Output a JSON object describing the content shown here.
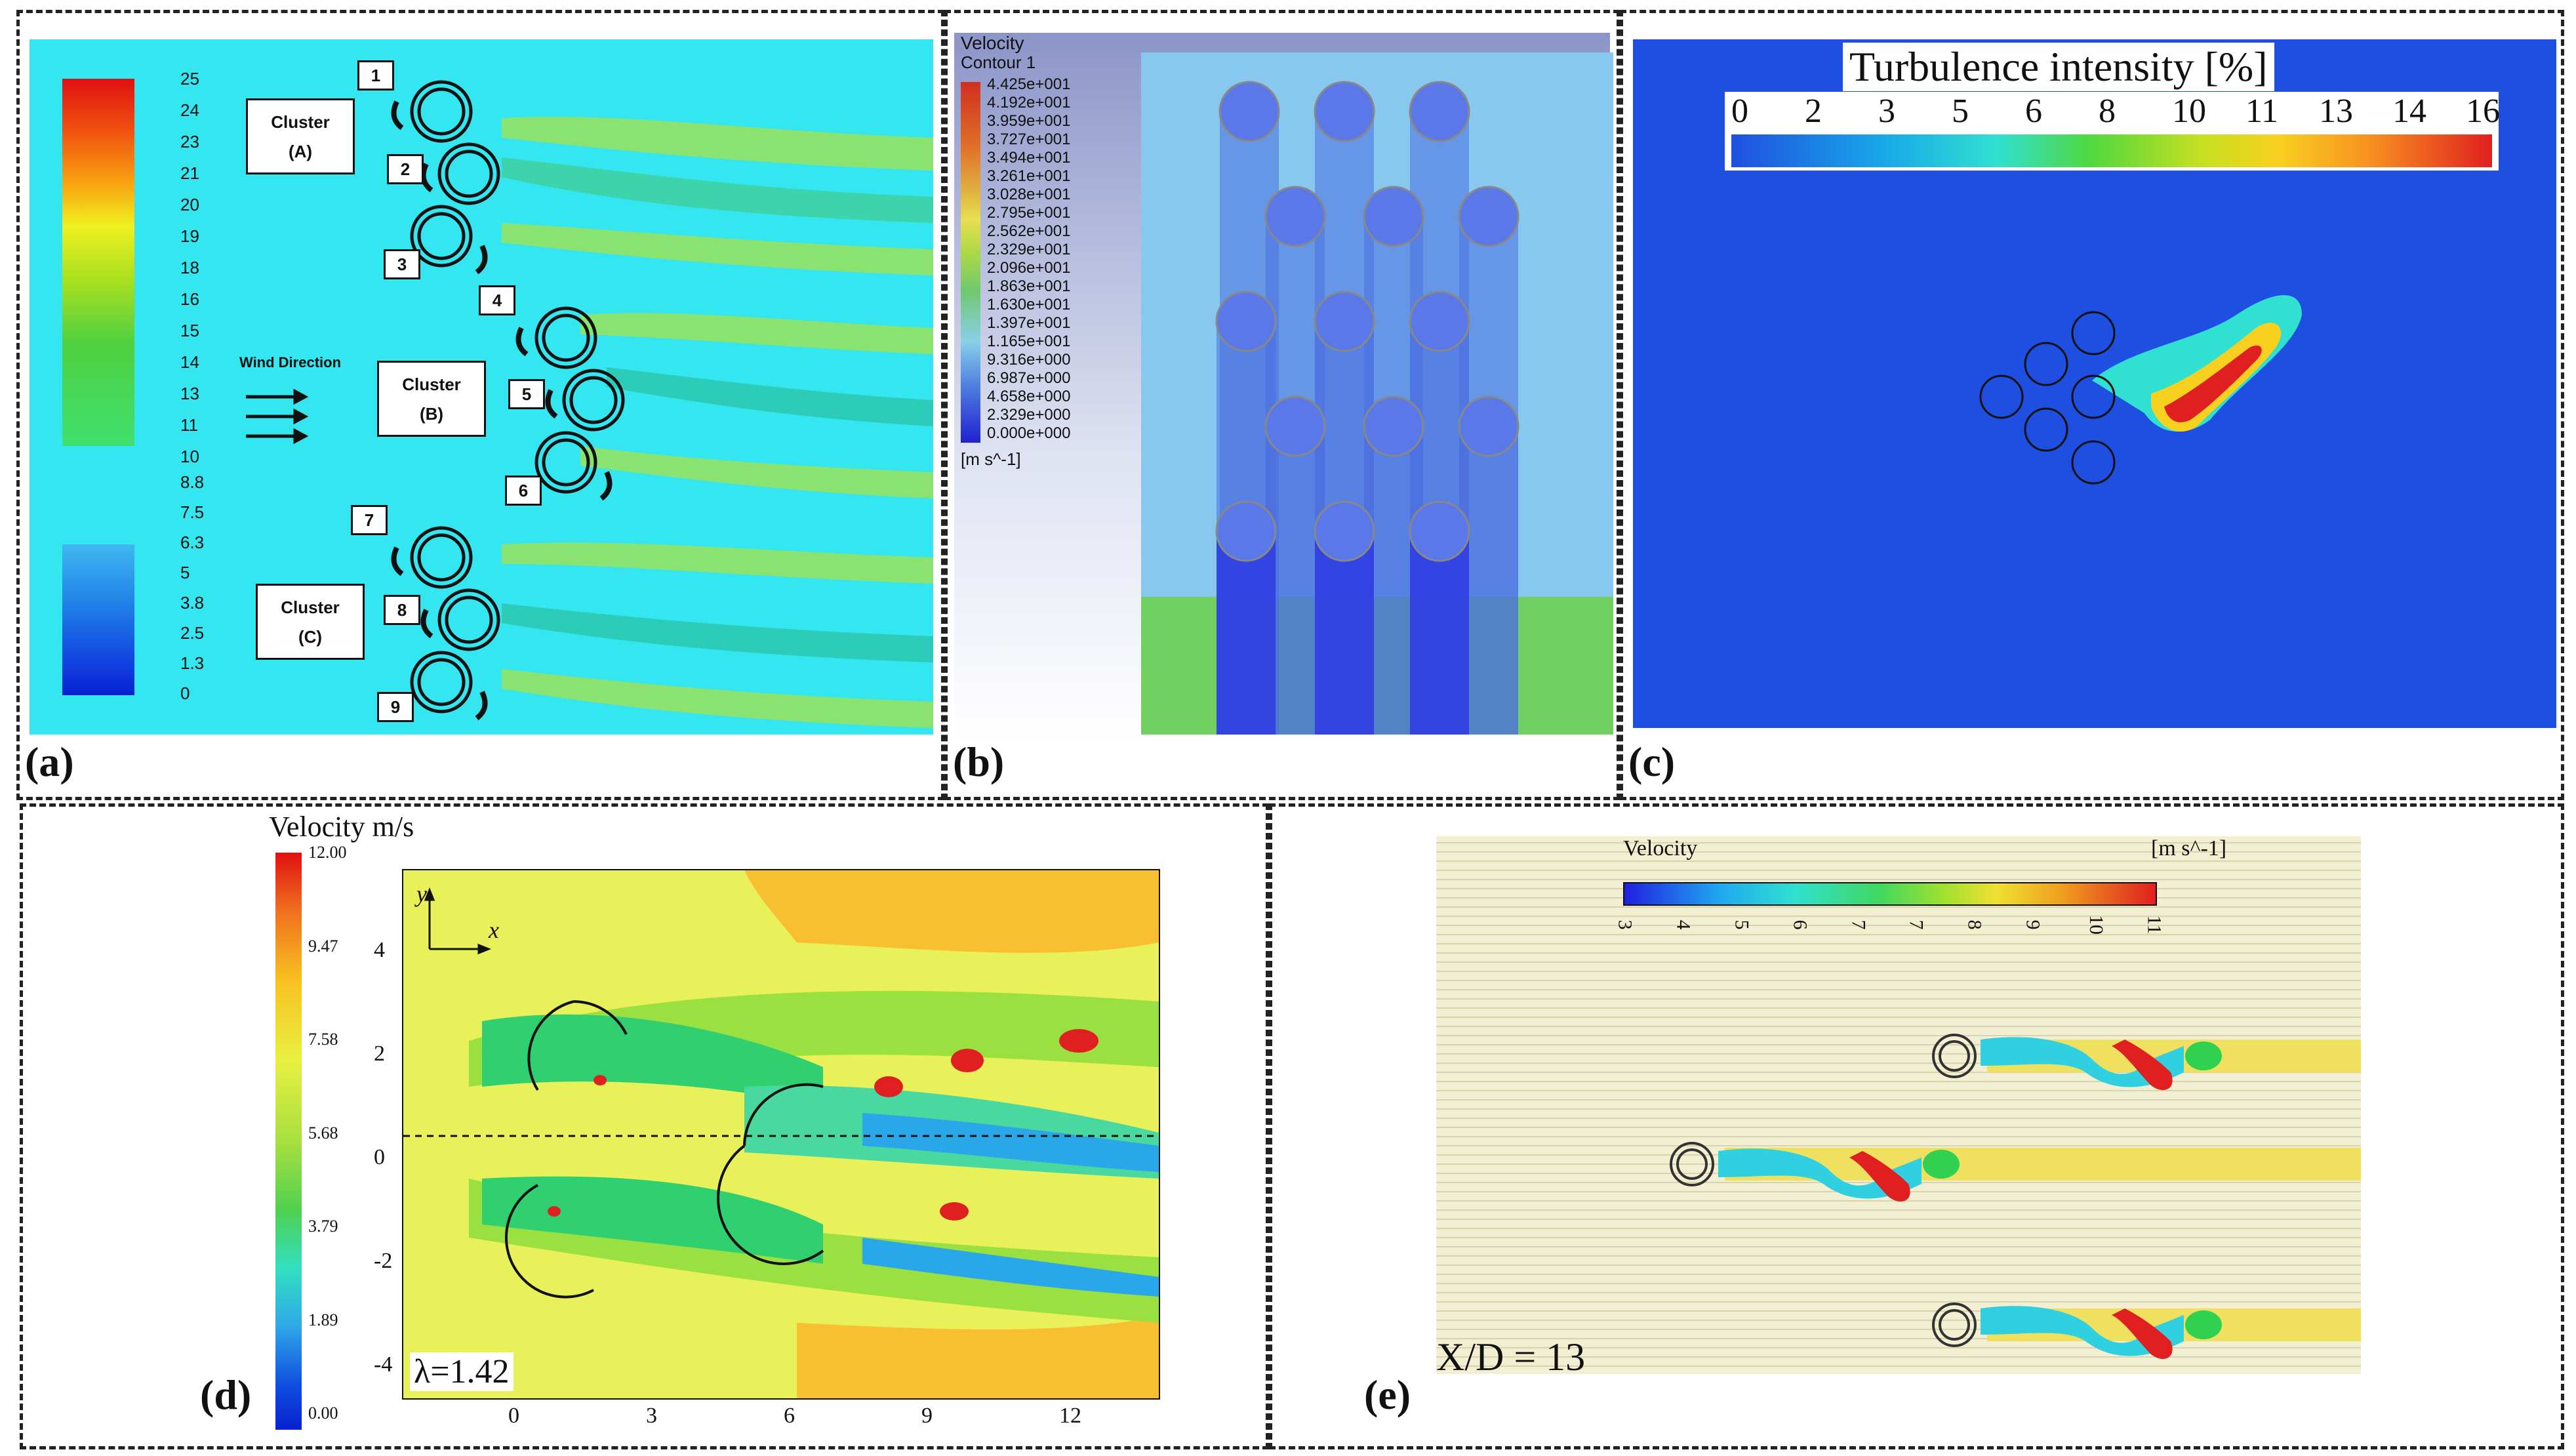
{
  "panels": {
    "a": {
      "label": "(a)",
      "legend_values": [
        "25",
        "24",
        "23",
        "21",
        "20",
        "19",
        "18",
        "16",
        "15",
        "14",
        "13",
        "11",
        "10",
        "8.8",
        "7.5",
        "6.3",
        "5",
        "3.8",
        "2.5",
        "1.3",
        "0"
      ],
      "wind_label": "Wind Direction",
      "clusters": [
        {
          "title": "Cluster",
          "sub": "(A)"
        },
        {
          "title": "Cluster",
          "sub": "(B)"
        },
        {
          "title": "Cluster",
          "sub": "(C)"
        }
      ],
      "turbine_numbers": [
        "1",
        "2",
        "3",
        "4",
        "5",
        "6",
        "7",
        "8",
        "9"
      ]
    },
    "b": {
      "label": "(b)",
      "legend_title": "Velocity",
      "legend_subtitle": "Contour 1",
      "legend_values": [
        "4.425e+001",
        "4.192e+001",
        "3.959e+001",
        "3.727e+001",
        "3.494e+001",
        "3.261e+001",
        "3.028e+001",
        "2.795e+001",
        "2.562e+001",
        "2.329e+001",
        "2.096e+001",
        "1.863e+001",
        "1.630e+001",
        "1.397e+001",
        "1.165e+001",
        "9.316e+000",
        "6.987e+000",
        "4.658e+000",
        "2.329e+000",
        "0.000e+000"
      ],
      "unit": "[m s^-1]"
    },
    "c": {
      "label": "(c)",
      "title": "Turbulence intensity [%]",
      "colorbar_ticks": [
        "0",
        "2",
        "3",
        "5",
        "6",
        "8",
        "10",
        "11",
        "13",
        "14",
        "16"
      ]
    },
    "d": {
      "label": "(d)",
      "legend_title": "Velocity m/s",
      "legend_values": [
        "12.00",
        "9.47",
        "7.58",
        "5.68",
        "3.79",
        "1.89",
        "0.00"
      ],
      "y_ticks": [
        "4",
        "2",
        "0",
        "-2",
        "-4"
      ],
      "x_ticks": [
        "0",
        "3",
        "6",
        "9",
        "12"
      ],
      "axis_y": "y",
      "axis_x": "x",
      "tsr": "λ=1.42"
    },
    "e": {
      "label": "(e)",
      "legend_title": "Velocity",
      "unit": "[m s^-1]",
      "colorbar_ticks": [
        "3",
        "4",
        "5",
        "6",
        "7",
        "7",
        "8",
        "9",
        "10",
        "11"
      ],
      "caption": "X/D = 13"
    }
  },
  "colors": {
    "a_background": "#33e6f0",
    "b_background": "#88c8ee",
    "c_background": "#1f4fe0",
    "d_background": "#e8f05a",
    "e_background": "#f3efd2"
  }
}
